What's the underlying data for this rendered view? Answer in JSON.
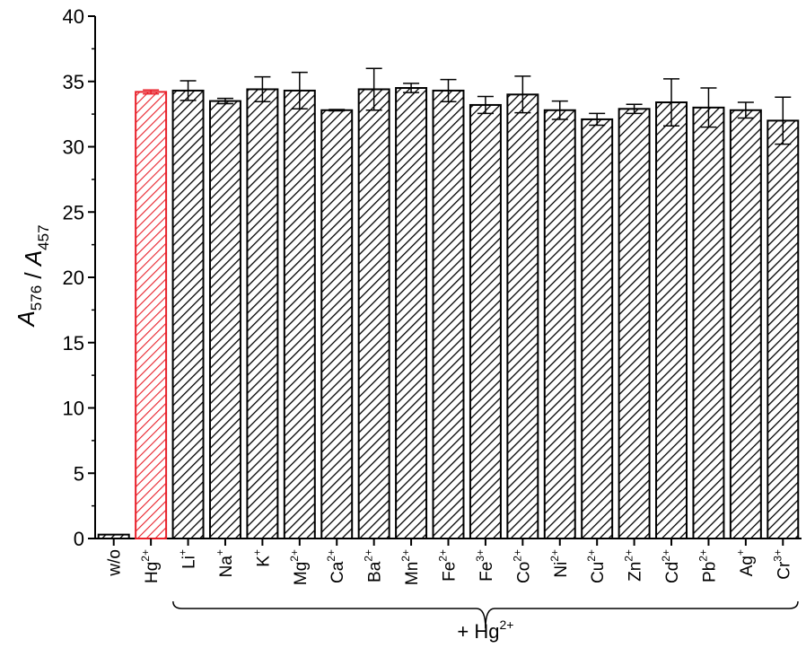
{
  "chart_data": {
    "type": "bar",
    "ylabel": {
      "parts": [
        {
          "text": "A",
          "italic": true
        },
        {
          "text": "576",
          "sub": true
        },
        {
          "text": " / ",
          "italic": false
        },
        {
          "text": "A",
          "italic": true
        },
        {
          "text": "457",
          "sub": true
        }
      ]
    },
    "ylim": [
      0,
      40
    ],
    "yticks": [
      "0",
      "5",
      "10",
      "15",
      "20",
      "25",
      "30",
      "35",
      "40"
    ],
    "group_label": {
      "base": "+ Hg",
      "sup": "2+"
    },
    "colors": {
      "default": "#000000",
      "highlight": "#e8202a"
    },
    "bars": [
      {
        "base": "w/o",
        "sup": "",
        "value": 0.3,
        "err": 0,
        "highlight": false
      },
      {
        "base": "Hg",
        "sup": "2+",
        "value": 34.2,
        "err": 0.15,
        "highlight": true
      },
      {
        "base": "Li",
        "sup": "+",
        "value": 34.3,
        "err": 0.75,
        "highlight": false
      },
      {
        "base": "Na",
        "sup": "+",
        "value": 33.5,
        "err": 0.2,
        "highlight": false
      },
      {
        "base": "K",
        "sup": "+",
        "value": 34.4,
        "err": 0.95,
        "highlight": false
      },
      {
        "base": "Mg",
        "sup": "2+",
        "value": 34.3,
        "err": 1.4,
        "highlight": false
      },
      {
        "base": "Ca",
        "sup": "2+",
        "value": 32.8,
        "err": 0.05,
        "highlight": false
      },
      {
        "base": "Ba",
        "sup": "2+",
        "value": 34.4,
        "err": 1.6,
        "highlight": false
      },
      {
        "base": "Mn",
        "sup": "2+",
        "value": 34.5,
        "err": 0.35,
        "highlight": false
      },
      {
        "base": "Fe",
        "sup": "2+",
        "value": 34.3,
        "err": 0.85,
        "highlight": false
      },
      {
        "base": "Fe",
        "sup": "3+",
        "value": 33.2,
        "err": 0.65,
        "highlight": false
      },
      {
        "base": "Co",
        "sup": "2+",
        "value": 34.0,
        "err": 1.4,
        "highlight": false
      },
      {
        "base": "Ni",
        "sup": "2+",
        "value": 32.8,
        "err": 0.7,
        "highlight": false
      },
      {
        "base": "Cu",
        "sup": "2+",
        "value": 32.1,
        "err": 0.45,
        "highlight": false
      },
      {
        "base": "Zn",
        "sup": "2+",
        "value": 32.9,
        "err": 0.35,
        "highlight": false
      },
      {
        "base": "Cd",
        "sup": "2+",
        "value": 33.4,
        "err": 1.8,
        "highlight": false
      },
      {
        "base": "Pb",
        "sup": "2+",
        "value": 33.0,
        "err": 1.5,
        "highlight": false
      },
      {
        "base": "Ag",
        "sup": "+",
        "value": 32.8,
        "err": 0.6,
        "highlight": false
      },
      {
        "base": "Cr",
        "sup": "3+",
        "value": 32.0,
        "err": 1.8,
        "highlight": false
      }
    ]
  }
}
